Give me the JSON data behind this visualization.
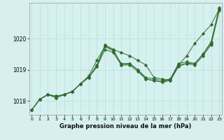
{
  "xlabel": "Graphe pression niveau de la mer (hPa)",
  "background_color": "#d6f0f0",
  "grid_color": "#b8dede",
  "line_color": "#2d6e2d",
  "x_values": [
    0,
    1,
    2,
    3,
    4,
    5,
    6,
    7,
    8,
    9,
    10,
    11,
    12,
    13,
    14,
    15,
    16,
    17,
    18,
    19,
    20,
    21,
    22,
    23
  ],
  "series1": [
    1017.7,
    1018.05,
    1018.2,
    1018.15,
    1018.2,
    1018.3,
    1018.55,
    1018.8,
    1019.3,
    1019.75,
    1019.65,
    1019.55,
    1019.45,
    1019.3,
    1019.15,
    1018.75,
    1018.7,
    1018.65,
    1019.15,
    1019.45,
    1019.85,
    1020.15,
    1020.45,
    1020.95
  ],
  "series2": [
    1017.7,
    1018.05,
    1018.2,
    1018.15,
    1018.2,
    1018.3,
    1018.55,
    1018.75,
    1019.15,
    1019.75,
    1019.6,
    1019.2,
    1019.2,
    1019.0,
    1018.75,
    1018.7,
    1018.65,
    1018.7,
    1019.2,
    1019.25,
    1019.2,
    1019.5,
    1019.85,
    1020.95
  ],
  "series3": [
    1017.7,
    1018.05,
    1018.2,
    1018.1,
    1018.2,
    1018.3,
    1018.55,
    1018.75,
    1019.1,
    1019.65,
    1019.55,
    1019.15,
    1019.15,
    1018.95,
    1018.7,
    1018.65,
    1018.6,
    1018.65,
    1019.1,
    1019.2,
    1019.15,
    1019.45,
    1019.8,
    1020.9
  ],
  "series4": [
    1017.7,
    1018.05,
    1018.2,
    1018.1,
    1018.2,
    1018.3,
    1018.55,
    1018.75,
    1019.1,
    1019.8,
    1019.65,
    1019.15,
    1019.2,
    1019.0,
    1018.7,
    1018.65,
    1018.6,
    1018.7,
    1019.15,
    1019.2,
    1019.2,
    1019.5,
    1019.9,
    1021.0
  ],
  "ylim": [
    1017.55,
    1021.15
  ],
  "yticks": [
    1018,
    1019,
    1020
  ],
  "xticks": [
    0,
    1,
    2,
    3,
    4,
    5,
    6,
    7,
    8,
    9,
    10,
    11,
    12,
    13,
    14,
    15,
    16,
    17,
    18,
    19,
    20,
    21,
    22,
    23
  ]
}
